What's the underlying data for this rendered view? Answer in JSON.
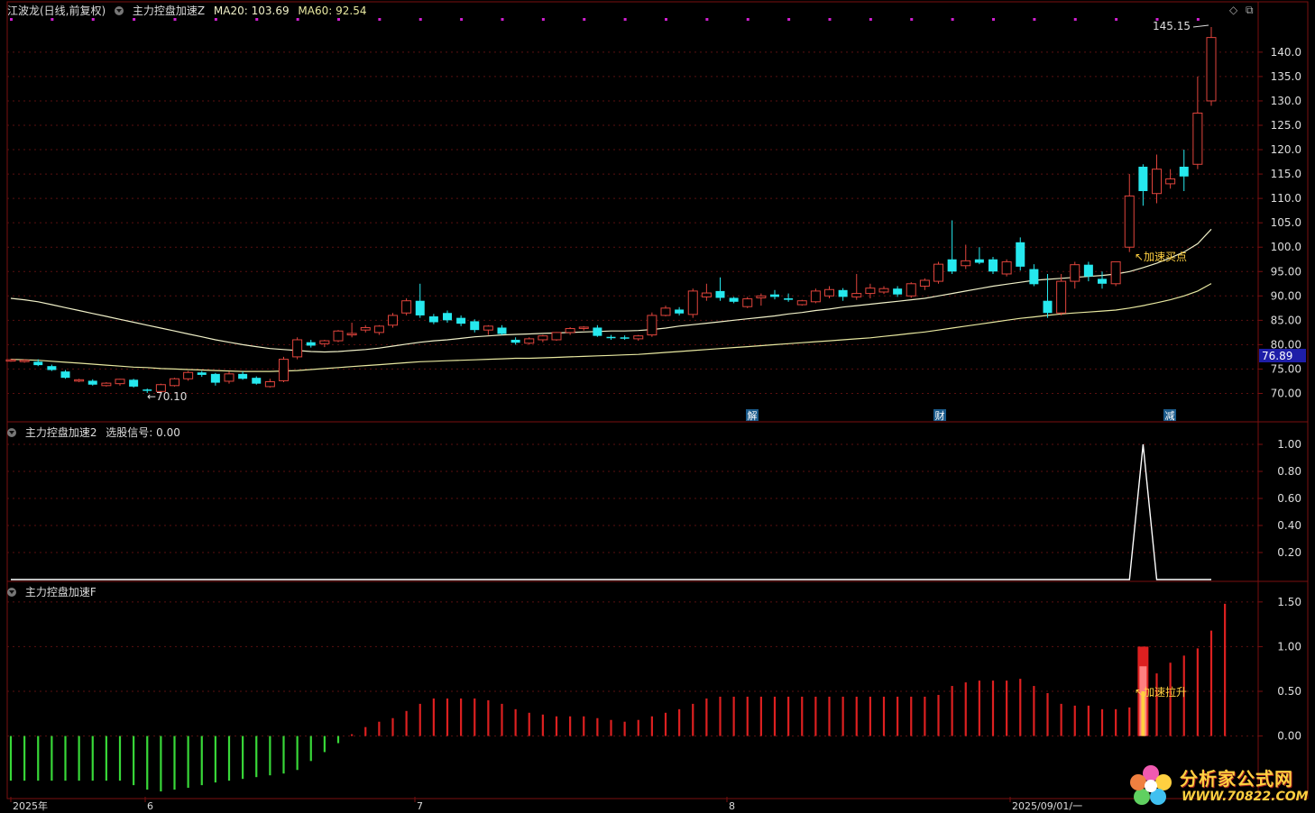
{
  "header": {
    "stock": "江波龙(日线,前复权)",
    "indicator": "主力控盘加速Z",
    "ma20": "MA20: 103.69",
    "ma60": "MA60: 92.54"
  },
  "controls": {
    "diamond": "◇",
    "window": "⧉"
  },
  "panel2": {
    "title": "主力控盘加速2",
    "signal": "选股信号: 0.00"
  },
  "panel3": {
    "title": "主力控盘加速F"
  },
  "annotations": {
    "high": "145.15",
    "low": "70.10",
    "buy": "加速买点",
    "rise": "加速拉升",
    "last_price": "76.89",
    "event_jie": "解",
    "event_cai": "财",
    "event_jian": "减"
  },
  "axes": {
    "price_ticks": [
      "140.0",
      "135.0",
      "130.0",
      "125.0",
      "120.0",
      "115.0",
      "110.0",
      "105.0",
      "100.0",
      "95.00",
      "90.00",
      "85.00",
      "80.00",
      "75.00",
      "70.00"
    ],
    "signal_ticks": [
      "1.00",
      "0.80",
      "0.60",
      "0.40",
      "0.20"
    ],
    "f_ticks": [
      "1.50",
      "1.00",
      "0.50",
      "0.00"
    ],
    "x_labels": [
      "2025年",
      "6",
      "7",
      "8",
      "2025/09/01/一"
    ]
  },
  "logo": {
    "name": "分析家公式网",
    "url": "WWW.70822.COM"
  },
  "colors": {
    "up": "#e0443c",
    "down": "#26e8ee",
    "ma20": "#f0f0c8",
    "ma60": "#e8e8a0",
    "frame": "#7a1010",
    "grid": "#5a1010",
    "signal": "#ffffff",
    "green": "#38d838",
    "red": "#dd2020",
    "axis_text": "#dddddd",
    "magenta": "#d020d0"
  },
  "chart_data": [
    {
      "type": "candlestick",
      "title": "江波龙(日线,前复权)",
      "ylim": [
        67.5,
        147
      ],
      "candles": [
        [
          76.8,
          77.1,
          76.5,
          76.9
        ],
        [
          76.7,
          77.0,
          76.3,
          76.8
        ],
        [
          76.5,
          77.0,
          75.6,
          75.8
        ],
        [
          75.6,
          75.9,
          74.6,
          74.8
        ],
        [
          74.5,
          74.8,
          73.0,
          73.2
        ],
        [
          72.8,
          73.0,
          72.3,
          72.8
        ],
        [
          72.6,
          72.9,
          71.6,
          71.8
        ],
        [
          71.6,
          72.3,
          71.4,
          72.1
        ],
        [
          72.0,
          73.0,
          71.6,
          72.9
        ],
        [
          72.8,
          73.0,
          71.2,
          71.4
        ],
        [
          70.8,
          71.0,
          70.1,
          70.6
        ],
        [
          70.4,
          72.0,
          70.2,
          71.8
        ],
        [
          71.6,
          73.2,
          71.4,
          73.0
        ],
        [
          73.0,
          74.6,
          72.6,
          74.3
        ],
        [
          74.3,
          74.6,
          73.4,
          73.8
        ],
        [
          74.0,
          74.2,
          71.6,
          72.2
        ],
        [
          72.5,
          74.5,
          72.0,
          74.0
        ],
        [
          74.0,
          74.5,
          72.8,
          73.0
        ],
        [
          73.2,
          73.5,
          71.8,
          72.0
        ],
        [
          71.4,
          73.0,
          71.2,
          72.4
        ],
        [
          72.6,
          77.5,
          72.3,
          77.0
        ],
        [
          77.5,
          81.5,
          77.0,
          81.0
        ],
        [
          80.5,
          81.0,
          79.4,
          79.8
        ],
        [
          80.2,
          81.0,
          79.5,
          80.8
        ],
        [
          80.8,
          83.0,
          80.5,
          82.8
        ],
        [
          82.0,
          84.5,
          81.5,
          82.3
        ],
        [
          83.0,
          84.0,
          82.5,
          83.5
        ],
        [
          82.5,
          84.0,
          82.0,
          83.8
        ],
        [
          84.0,
          86.5,
          83.5,
          86.0
        ],
        [
          86.5,
          89.5,
          86.0,
          89.0
        ],
        [
          89.0,
          92.5,
          85.5,
          86.0
        ],
        [
          85.8,
          86.3,
          84.2,
          84.6
        ],
        [
          86.5,
          87.0,
          84.5,
          85.0
        ],
        [
          85.5,
          86.0,
          83.8,
          84.3
        ],
        [
          84.8,
          85.2,
          82.5,
          83.0
        ],
        [
          83.0,
          84.0,
          82.0,
          83.8
        ],
        [
          83.5,
          84.0,
          82.0,
          82.2
        ],
        [
          81.0,
          81.5,
          80.0,
          80.4
        ],
        [
          80.3,
          81.5,
          80.0,
          81.2
        ],
        [
          81.0,
          82.0,
          80.5,
          81.8
        ],
        [
          81.0,
          82.6,
          80.8,
          82.5
        ],
        [
          82.5,
          83.6,
          82.0,
          83.3
        ],
        [
          83.4,
          83.8,
          82.9,
          83.6
        ],
        [
          83.5,
          84.0,
          81.6,
          81.8
        ],
        [
          81.6,
          82.0,
          81.0,
          81.4
        ],
        [
          81.5,
          81.9,
          81.0,
          81.4
        ],
        [
          81.2,
          82.0,
          80.8,
          81.8
        ],
        [
          82.0,
          86.6,
          81.6,
          86.0
        ],
        [
          86.0,
          88.0,
          85.8,
          87.5
        ],
        [
          87.2,
          87.7,
          86.0,
          86.4
        ],
        [
          86.2,
          91.5,
          85.5,
          91.0
        ],
        [
          89.8,
          92.5,
          89.0,
          90.6
        ],
        [
          91.0,
          93.8,
          89.0,
          89.6
        ],
        [
          89.6,
          89.8,
          88.5,
          88.8
        ],
        [
          87.8,
          89.8,
          87.5,
          89.4
        ],
        [
          89.6,
          90.5,
          88.0,
          90.0
        ],
        [
          90.3,
          91.2,
          89.3,
          89.8
        ],
        [
          89.5,
          90.5,
          88.8,
          89.2
        ],
        [
          88.2,
          89.2,
          88.0,
          89.0
        ],
        [
          88.8,
          91.5,
          88.5,
          91.0
        ],
        [
          90.0,
          92.0,
          89.5,
          91.3
        ],
        [
          91.2,
          91.6,
          89.0,
          89.8
        ],
        [
          89.8,
          94.5,
          89.2,
          90.5
        ],
        [
          90.5,
          92.5,
          89.5,
          91.6
        ],
        [
          90.8,
          92.0,
          90.4,
          91.5
        ],
        [
          91.5,
          92.0,
          89.8,
          90.3
        ],
        [
          90.0,
          92.8,
          89.6,
          92.5
        ],
        [
          92.0,
          93.6,
          91.2,
          93.2
        ],
        [
          93.0,
          97.0,
          92.5,
          96.5
        ],
        [
          97.5,
          105.5,
          94.5,
          95.0
        ],
        [
          96.2,
          100.5,
          95.5,
          97.2
        ],
        [
          97.5,
          100.0,
          96.5,
          96.8
        ],
        [
          97.5,
          98.0,
          94.5,
          95.0
        ],
        [
          94.5,
          97.5,
          94.0,
          97.0
        ],
        [
          101.0,
          102.0,
          95.2,
          96.0
        ],
        [
          95.5,
          96.5,
          92.0,
          92.4
        ],
        [
          89.0,
          94.5,
          85.5,
          86.5
        ],
        [
          86.5,
          94.5,
          86.0,
          93.0
        ],
        [
          93.0,
          97.0,
          91.5,
          96.4
        ],
        [
          96.4,
          97.0,
          93.0,
          94.0
        ],
        [
          93.5,
          95.0,
          91.5,
          92.5
        ],
        [
          92.5,
          97.0,
          92.0,
          97.0
        ],
        [
          100.0,
          115.0,
          99.0,
          110.5
        ],
        [
          116.5,
          117.0,
          108.5,
          111.5
        ],
        [
          111.0,
          119.0,
          109.0,
          116.0
        ],
        [
          113.0,
          116.0,
          112.0,
          114.0
        ],
        [
          116.5,
          120.0,
          111.5,
          114.5
        ],
        [
          117.0,
          135.0,
          116.0,
          127.5
        ],
        [
          130.0,
          145.15,
          129.0,
          143.0
        ]
      ],
      "ma20": [
        89.5,
        89.2,
        88.8,
        88.2,
        87.6,
        87.0,
        86.4,
        85.8,
        85.2,
        84.6,
        84.0,
        83.4,
        82.8,
        82.2,
        81.6,
        81.0,
        80.5,
        80.0,
        79.6,
        79.2,
        79.0,
        78.8,
        78.6,
        78.5,
        78.6,
        78.8,
        79.0,
        79.3,
        79.7,
        80.1,
        80.5,
        80.8,
        81.0,
        81.3,
        81.6,
        81.8,
        82.0,
        82.1,
        82.2,
        82.3,
        82.4,
        82.5,
        82.6,
        82.7,
        82.8,
        82.8,
        82.9,
        83.1,
        83.4,
        83.8,
        84.1,
        84.4,
        84.7,
        85.0,
        85.3,
        85.6,
        85.9,
        86.3,
        86.6,
        87.0,
        87.3,
        87.7,
        88.0,
        88.3,
        88.6,
        88.9,
        89.2,
        89.5,
        90.0,
        90.5,
        91.0,
        91.5,
        92.0,
        92.4,
        92.8,
        93.2,
        93.4,
        93.6,
        93.8,
        94.0,
        94.2,
        94.5,
        95.0,
        95.8,
        96.7,
        97.8,
        99.0,
        100.7,
        103.69
      ],
      "ma60": [
        77.0,
        76.9,
        76.8,
        76.6,
        76.4,
        76.2,
        76.0,
        75.8,
        75.6,
        75.4,
        75.3,
        75.1,
        75.0,
        74.9,
        74.8,
        74.7,
        74.6,
        74.5,
        74.5,
        74.5,
        74.6,
        74.7,
        74.9,
        75.1,
        75.3,
        75.5,
        75.7,
        75.9,
        76.1,
        76.3,
        76.5,
        76.6,
        76.7,
        76.8,
        76.9,
        77.0,
        77.1,
        77.2,
        77.2,
        77.3,
        77.4,
        77.5,
        77.6,
        77.7,
        77.8,
        77.9,
        78.0,
        78.2,
        78.4,
        78.6,
        78.8,
        79.0,
        79.2,
        79.4,
        79.6,
        79.8,
        80.0,
        80.2,
        80.4,
        80.6,
        80.8,
        81.0,
        81.2,
        81.4,
        81.7,
        82.0,
        82.3,
        82.6,
        83.0,
        83.4,
        83.8,
        84.2,
        84.6,
        85.0,
        85.4,
        85.7,
        86.0,
        86.3,
        86.5,
        86.7,
        86.9,
        87.1,
        87.5,
        88.0,
        88.6,
        89.2,
        90.0,
        91.0,
        92.54
      ]
    },
    {
      "type": "line",
      "title": "主力控盘加速2",
      "ylim": [
        0,
        1.1
      ],
      "series": [
        {
          "name": "选股信号",
          "values": [
            0,
            0,
            0,
            0,
            0,
            0,
            0,
            0,
            0,
            0,
            0,
            0,
            0,
            0,
            0,
            0,
            0,
            0,
            0,
            0,
            0,
            0,
            0,
            0,
            0,
            0,
            0,
            0,
            0,
            0,
            0,
            0,
            0,
            0,
            0,
            0,
            0,
            0,
            0,
            0,
            0,
            0,
            0,
            0,
            0,
            0,
            0,
            0,
            0,
            0,
            0,
            0,
            0,
            0,
            0,
            0,
            0,
            0,
            0,
            0,
            0,
            0,
            0,
            0,
            0,
            0,
            0,
            0,
            0,
            0,
            0,
            0,
            0,
            0,
            0,
            0,
            0,
            0,
            0,
            0,
            0,
            0,
            0,
            1,
            0,
            0,
            0,
            0,
            0
          ]
        }
      ]
    },
    {
      "type": "bar",
      "title": "主力控盘加速F",
      "ylim": [
        -0.68,
        1.68
      ],
      "values": [
        -0.5,
        -0.5,
        -0.5,
        -0.5,
        -0.5,
        -0.5,
        -0.5,
        -0.5,
        -0.5,
        -0.55,
        -0.6,
        -0.62,
        -0.6,
        -0.58,
        -0.55,
        -0.52,
        -0.5,
        -0.48,
        -0.46,
        -0.44,
        -0.42,
        -0.38,
        -0.28,
        -0.18,
        -0.08,
        0.02,
        0.1,
        0.16,
        0.2,
        0.28,
        0.36,
        0.42,
        0.42,
        0.42,
        0.42,
        0.4,
        0.36,
        0.3,
        0.26,
        0.24,
        0.22,
        0.22,
        0.22,
        0.2,
        0.18,
        0.16,
        0.18,
        0.22,
        0.26,
        0.3,
        0.36,
        0.42,
        0.44,
        0.44,
        0.44,
        0.44,
        0.44,
        0.44,
        0.44,
        0.44,
        0.44,
        0.44,
        0.44,
        0.44,
        0.44,
        0.44,
        0.44,
        0.44,
        0.46,
        0.56,
        0.6,
        0.62,
        0.62,
        0.62,
        0.64,
        0.56,
        0.48,
        0.36,
        0.34,
        0.34,
        0.3,
        0.3,
        0.32,
        1.0,
        0.7,
        0.82,
        0.9,
        0.98,
        1.18,
        1.48
      ]
    }
  ]
}
